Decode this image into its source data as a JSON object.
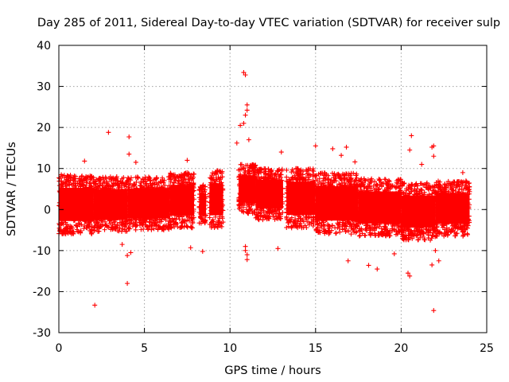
{
  "chart_data": {
    "type": "scatter",
    "title": "Day 285 of 2011, Sidereal Day-to-day VTEC variation (SDTVAR) for receiver sulp",
    "xlabel": "GPS time / hours",
    "ylabel": "SDTVAR / TECUs",
    "xlim": [
      0,
      25
    ],
    "ylim": [
      -30,
      40
    ],
    "xticks": [
      0,
      5,
      10,
      15,
      20,
      25
    ],
    "yticks": [
      -30,
      -20,
      -10,
      0,
      10,
      20,
      30,
      40
    ],
    "xtick_labels": [
      "0",
      "5",
      "10",
      "15",
      "20",
      "25"
    ],
    "ytick_labels": [
      "-30",
      "-20",
      "-10",
      "0",
      "10",
      "20",
      "30",
      "40"
    ],
    "grid": true,
    "marker": "plus",
    "color": "#ff0000",
    "series": [
      {
        "name": "SDTVAR",
        "dense_bands": [
          {
            "x_start": 0.0,
            "x_end": 2.0,
            "y_low": -6.0,
            "y_high": 8.5
          },
          {
            "x_start": 2.0,
            "x_end": 4.0,
            "y_low": -5.5,
            "y_high": 8.0
          },
          {
            "x_start": 4.0,
            "x_end": 6.5,
            "y_low": -5.0,
            "y_high": 8.0
          },
          {
            "x_start": 6.5,
            "x_end": 7.9,
            "y_low": -4.5,
            "y_high": 9.0
          },
          {
            "x_start": 8.2,
            "x_end": 8.6,
            "y_low": -3.5,
            "y_high": 6.0
          },
          {
            "x_start": 8.8,
            "x_end": 9.6,
            "y_low": -4.5,
            "y_high": 9.5
          },
          {
            "x_start": 10.5,
            "x_end": 11.5,
            "y_low": -1.0,
            "y_high": 11.0
          },
          {
            "x_start": 11.5,
            "x_end": 13.1,
            "y_low": -2.5,
            "y_high": 10.0
          },
          {
            "x_start": 13.3,
            "x_end": 15.0,
            "y_low": -4.5,
            "y_high": 10.0
          },
          {
            "x_start": 15.0,
            "x_end": 17.5,
            "y_low": -6.0,
            "y_high": 9.0
          },
          {
            "x_start": 17.5,
            "x_end": 20.0,
            "y_low": -6.5,
            "y_high": 7.5
          },
          {
            "x_start": 20.0,
            "x_end": 22.0,
            "y_low": -7.5,
            "y_high": 6.5
          },
          {
            "x_start": 22.0,
            "x_end": 24.0,
            "y_low": -6.5,
            "y_high": 7.0
          }
        ],
        "outliers": [
          {
            "x": 2.1,
            "y": -23.3
          },
          {
            "x": 2.9,
            "y": 18.8
          },
          {
            "x": 4.1,
            "y": 17.7
          },
          {
            "x": 4.0,
            "y": -18.0
          },
          {
            "x": 4.0,
            "y": -11.2
          },
          {
            "x": 4.2,
            "y": -10.5
          },
          {
            "x": 4.1,
            "y": 13.5
          },
          {
            "x": 4.5,
            "y": 11.5
          },
          {
            "x": 1.5,
            "y": 11.8
          },
          {
            "x": 3.7,
            "y": -8.5
          },
          {
            "x": 7.5,
            "y": 12.0
          },
          {
            "x": 7.7,
            "y": -9.3
          },
          {
            "x": 8.4,
            "y": -10.2
          },
          {
            "x": 10.8,
            "y": 33.4
          },
          {
            "x": 10.9,
            "y": 32.8
          },
          {
            "x": 11.0,
            "y": 25.5
          },
          {
            "x": 11.0,
            "y": 24.2
          },
          {
            "x": 10.9,
            "y": 23.0
          },
          {
            "x": 10.8,
            "y": 21.0
          },
          {
            "x": 10.6,
            "y": 20.5
          },
          {
            "x": 10.4,
            "y": 16.2
          },
          {
            "x": 11.1,
            "y": 17.0
          },
          {
            "x": 10.9,
            "y": -10.0
          },
          {
            "x": 11.0,
            "y": -11.0
          },
          {
            "x": 11.0,
            "y": -12.2
          },
          {
            "x": 10.9,
            "y": -9.0
          },
          {
            "x": 12.8,
            "y": -9.5
          },
          {
            "x": 13.0,
            "y": 14.0
          },
          {
            "x": 15.0,
            "y": 15.5
          },
          {
            "x": 16.0,
            "y": 14.8
          },
          {
            "x": 16.8,
            "y": 15.2
          },
          {
            "x": 16.9,
            "y": -12.5
          },
          {
            "x": 18.1,
            "y": -13.6
          },
          {
            "x": 18.6,
            "y": -14.5
          },
          {
            "x": 20.6,
            "y": 18.0
          },
          {
            "x": 20.5,
            "y": 14.5
          },
          {
            "x": 20.4,
            "y": -15.5
          },
          {
            "x": 20.5,
            "y": -16.2
          },
          {
            "x": 21.8,
            "y": -13.5
          },
          {
            "x": 21.9,
            "y": -24.6
          },
          {
            "x": 21.9,
            "y": 15.5
          },
          {
            "x": 21.8,
            "y": 15.2
          },
          {
            "x": 21.9,
            "y": 13.0
          },
          {
            "x": 21.2,
            "y": 11.0
          },
          {
            "x": 22.0,
            "y": -10.0
          },
          {
            "x": 22.2,
            "y": -12.5
          },
          {
            "x": 19.6,
            "y": -10.8
          },
          {
            "x": 16.5,
            "y": 13.2
          },
          {
            "x": 17.3,
            "y": 11.6
          },
          {
            "x": 23.6,
            "y": 9.0
          }
        ]
      }
    ]
  }
}
